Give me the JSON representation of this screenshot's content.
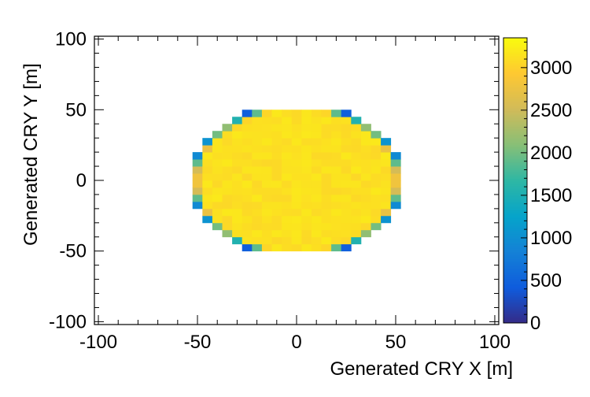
{
  "chart_data": {
    "type": "heatmap",
    "xlabel": "Generated CRY X [m]",
    "ylabel": "Generated CRY Y [m]",
    "xlim": [
      -102,
      102
    ],
    "ylim": [
      -102,
      102
    ],
    "x_ticks": [
      "-100",
      "-50",
      "0",
      "50",
      "100"
    ],
    "y_ticks": [
      "-100",
      "-50",
      "0",
      "50",
      "100"
    ],
    "x_tick_values": [
      -100,
      -50,
      0,
      50,
      100
    ],
    "y_tick_values": [
      -100,
      -50,
      0,
      50,
      100
    ],
    "bin_width": 5,
    "bin_height": 5,
    "bins_x_range": [
      -52.5,
      52.5
    ],
    "bins_y_range": [
      -50,
      50
    ],
    "disk_radius": 52,
    "interior_value": 3200,
    "colorbar": {
      "range": [
        0,
        3350
      ],
      "ticks": [
        "0",
        "500",
        "1000",
        "1500",
        "2000",
        "2500",
        "3000"
      ],
      "tick_values": [
        0,
        500,
        1000,
        1500,
        2000,
        2500,
        3000
      ]
    },
    "grid": false,
    "colormap": [
      "#352a87",
      "#0f5cdd",
      "#1481d6",
      "#06a4ca",
      "#2eb7a4",
      "#87bf77",
      "#d1bb59",
      "#fec832",
      "#f9fb0e"
    ]
  }
}
